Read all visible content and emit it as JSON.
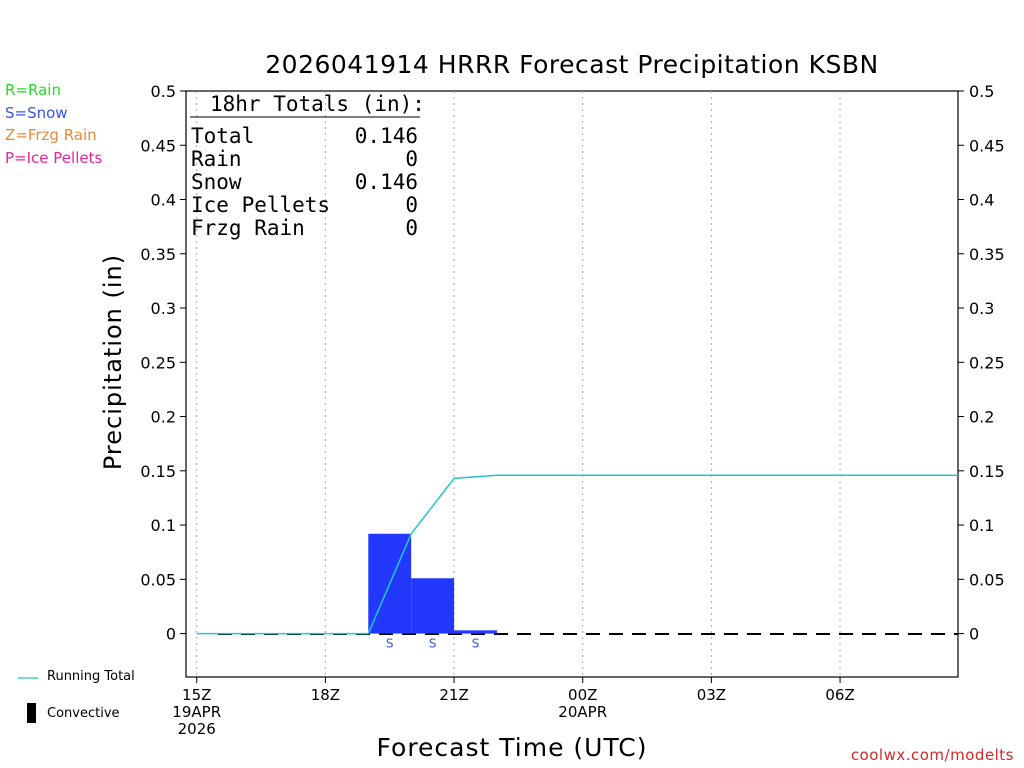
{
  "legend": {
    "rain": "R=Rain",
    "snow": "S=Snow",
    "frzg": "Z=Frzg Rain",
    "ice": "P=Ice Pellets",
    "running_total": "Running Total",
    "convective": "Convective"
  },
  "colors": {
    "rain": "#22dd22",
    "snow": "#3355ee",
    "frzg": "#ee8833",
    "ice": "#ee2299",
    "bar": "#2238ff",
    "running_total": "#22c8c8",
    "credit": "#d62828"
  },
  "credit": "coolwx.com/modelts",
  "totals": {
    "header": "18hr Totals (in):",
    "rows": [
      {
        "label": "Total",
        "value": "0.146"
      },
      {
        "label": "Rain",
        "value": "0"
      },
      {
        "label": "Snow",
        "value": "0.146"
      },
      {
        "label": "Ice Pellets",
        "value": "0"
      },
      {
        "label": "Frzg Rain",
        "value": "0"
      }
    ]
  },
  "chart_data": {
    "type": "bar",
    "title": "2026041914 HRRR Forecast Precipitation KSBN",
    "xlabel": "Forecast Time (UTC)",
    "ylabel": "Precipitation (in)",
    "ylim": [
      -0.04,
      0.5
    ],
    "y_ticks": [
      "0",
      "0.05",
      "0.1",
      "0.15",
      "0.2",
      "0.25",
      "0.3",
      "0.35",
      "0.4",
      "0.45",
      "0.5"
    ],
    "x_range_hours": [
      14.75,
      32.75
    ],
    "x_ticks": [
      {
        "hour": 15,
        "lines": [
          "15Z",
          "19APR",
          "2026"
        ]
      },
      {
        "hour": 18,
        "lines": [
          "18Z"
        ]
      },
      {
        "hour": 21,
        "lines": [
          "21Z"
        ]
      },
      {
        "hour": 24,
        "lines": [
          "00Z",
          "20APR"
        ]
      },
      {
        "hour": 27,
        "lines": [
          "03Z"
        ]
      },
      {
        "hour": 30,
        "lines": [
          "06Z"
        ]
      }
    ],
    "bars": [
      {
        "hour": 20,
        "value": 0.092,
        "ptype": "S"
      },
      {
        "hour": 21,
        "value": 0.051,
        "ptype": "S"
      },
      {
        "hour": 22,
        "value": 0.003,
        "ptype": "S"
      }
    ],
    "running_total": {
      "name": "Running Total",
      "hours": [
        15,
        16,
        17,
        18,
        19,
        20,
        21,
        22,
        23,
        24,
        25,
        26,
        27,
        28,
        29,
        30,
        31,
        32,
        32.75
      ],
      "values": [
        0,
        0,
        0,
        0,
        0,
        0.092,
        0.143,
        0.146,
        0.146,
        0.146,
        0.146,
        0.146,
        0.146,
        0.146,
        0.146,
        0.146,
        0.146,
        0.146,
        0.146
      ]
    },
    "convective": {
      "name": "Convective",
      "hours": [
        15,
        16,
        17,
        18,
        19,
        20,
        21,
        22,
        23,
        24,
        25,
        26,
        27,
        28,
        29,
        30,
        31,
        32
      ],
      "values": [
        0,
        0,
        0,
        0,
        0,
        0,
        0,
        0,
        0,
        0,
        0,
        0,
        0,
        0,
        0,
        0,
        0,
        0
      ]
    },
    "grid": "vertical dotted"
  }
}
